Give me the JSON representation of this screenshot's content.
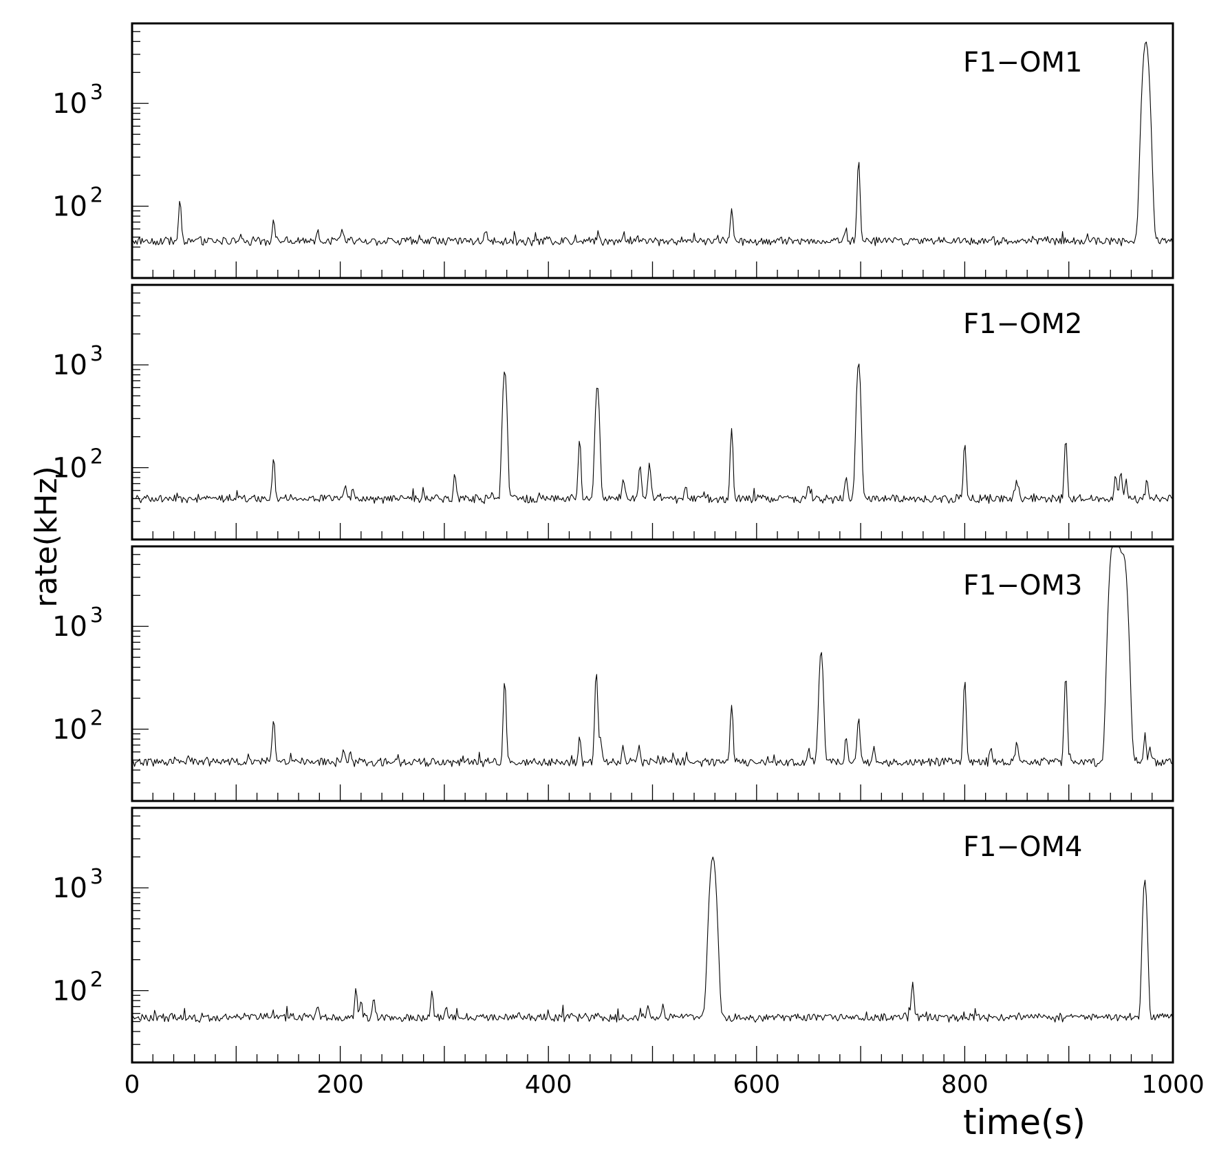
{
  "chart_data": [
    {
      "type": "line",
      "label": "F1−OM1",
      "yscale": "log",
      "xlim": [
        0,
        1000
      ],
      "ylim": [
        20,
        6000
      ],
      "y_tick_labels": [
        {
          "base": "10",
          "exp": "2",
          "value": 100
        },
        {
          "base": "10",
          "exp": "3",
          "value": 1000
        }
      ],
      "baseline": 46,
      "peaks": [
        {
          "x": 46,
          "y": 115
        },
        {
          "x": 136,
          "y": 75
        },
        {
          "x": 178,
          "y": 58
        },
        {
          "x": 202,
          "y": 56
        },
        {
          "x": 340,
          "y": 58
        },
        {
          "x": 448,
          "y": 57
        },
        {
          "x": 472,
          "y": 55
        },
        {
          "x": 576,
          "y": 93
        },
        {
          "x": 686,
          "y": 58
        },
        {
          "x": 698,
          "y": 280
        },
        {
          "x": 974,
          "y": 4000
        }
      ]
    },
    {
      "type": "line",
      "label": "F1−OM2",
      "yscale": "log",
      "xlim": [
        0,
        1000
      ],
      "ylim": [
        20,
        6000
      ],
      "y_tick_labels": [
        {
          "base": "10",
          "exp": "2",
          "value": 100
        },
        {
          "base": "10",
          "exp": "3",
          "value": 1000
        }
      ],
      "baseline": 50,
      "peaks": [
        {
          "x": 136,
          "y": 122
        },
        {
          "x": 205,
          "y": 65
        },
        {
          "x": 212,
          "y": 63
        },
        {
          "x": 310,
          "y": 90
        },
        {
          "x": 358,
          "y": 880
        },
        {
          "x": 430,
          "y": 185
        },
        {
          "x": 447,
          "y": 630
        },
        {
          "x": 472,
          "y": 82
        },
        {
          "x": 488,
          "y": 110
        },
        {
          "x": 497,
          "y": 110
        },
        {
          "x": 532,
          "y": 66
        },
        {
          "x": 576,
          "y": 240
        },
        {
          "x": 650,
          "y": 67
        },
        {
          "x": 686,
          "y": 85
        },
        {
          "x": 698,
          "y": 1050
        },
        {
          "x": 800,
          "y": 170
        },
        {
          "x": 850,
          "y": 77
        },
        {
          "x": 897,
          "y": 190
        },
        {
          "x": 945,
          "y": 80
        },
        {
          "x": 950,
          "y": 94
        },
        {
          "x": 955,
          "y": 78
        },
        {
          "x": 975,
          "y": 77
        }
      ]
    },
    {
      "type": "line",
      "label": "F1−OM3",
      "yscale": "log",
      "xlim": [
        0,
        1000
      ],
      "ylim": [
        20,
        6000
      ],
      "y_tick_labels": [
        {
          "base": "10",
          "exp": "2",
          "value": 100
        },
        {
          "base": "10",
          "exp": "3",
          "value": 1000
        }
      ],
      "baseline": 48,
      "peaks": [
        {
          "x": 54,
          "y": 56
        },
        {
          "x": 136,
          "y": 125
        },
        {
          "x": 203,
          "y": 62
        },
        {
          "x": 210,
          "y": 60
        },
        {
          "x": 358,
          "y": 290
        },
        {
          "x": 430,
          "y": 88
        },
        {
          "x": 446,
          "y": 360
        },
        {
          "x": 450,
          "y": 85
        },
        {
          "x": 472,
          "y": 68
        },
        {
          "x": 487,
          "y": 68
        },
        {
          "x": 576,
          "y": 175
        },
        {
          "x": 650,
          "y": 65
        },
        {
          "x": 662,
          "y": 570
        },
        {
          "x": 686,
          "y": 85
        },
        {
          "x": 698,
          "y": 130
        },
        {
          "x": 713,
          "y": 65
        },
        {
          "x": 800,
          "y": 295
        },
        {
          "x": 825,
          "y": 66
        },
        {
          "x": 850,
          "y": 78
        },
        {
          "x": 897,
          "y": 330
        },
        {
          "x": 942,
          "y": 5800
        },
        {
          "x": 947,
          "y": 5800
        },
        {
          "x": 953,
          "y": 4500
        },
        {
          "x": 973,
          "y": 82
        },
        {
          "x": 978,
          "y": 70
        }
      ]
    },
    {
      "type": "line",
      "label": "F1−OM4",
      "yscale": "log",
      "xlim": [
        0,
        1000
      ],
      "ylim": [
        20,
        6000
      ],
      "y_tick_labels": [
        {
          "base": "10",
          "exp": "2",
          "value": 100
        },
        {
          "base": "10",
          "exp": "3",
          "value": 1000
        }
      ],
      "baseline": 55,
      "peaks": [
        {
          "x": 178,
          "y": 72
        },
        {
          "x": 215,
          "y": 103
        },
        {
          "x": 220,
          "y": 80
        },
        {
          "x": 232,
          "y": 85
        },
        {
          "x": 288,
          "y": 97
        },
        {
          "x": 302,
          "y": 72
        },
        {
          "x": 496,
          "y": 70
        },
        {
          "x": 510,
          "y": 72
        },
        {
          "x": 558,
          "y": 2000
        },
        {
          "x": 750,
          "y": 120
        },
        {
          "x": 973,
          "y": 1200
        }
      ]
    }
  ],
  "axes": {
    "xlabel": "time(s)",
    "ylabel": "rate(kHz)",
    "x_tick_labels": [
      "0",
      "200",
      "400",
      "600",
      "800",
      "1000"
    ],
    "x_major_ticks": [
      0,
      100,
      200,
      300,
      400,
      500,
      600,
      700,
      800,
      900,
      1000
    ],
    "x_minor_step": 20,
    "grid": false
  }
}
